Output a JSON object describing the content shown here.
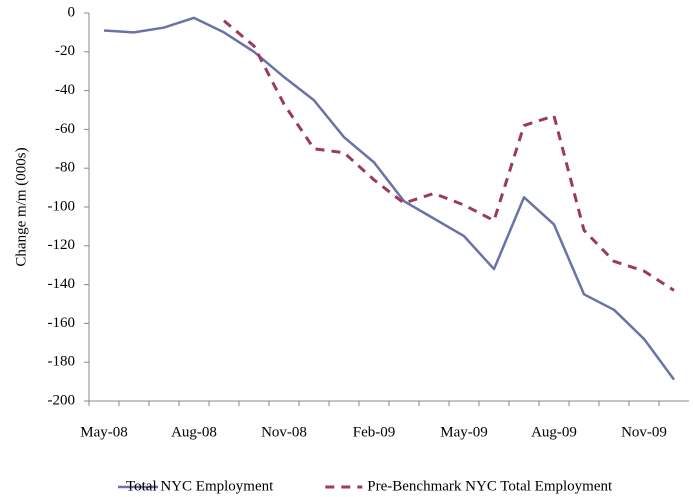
{
  "chart_data": {
    "type": "line",
    "y_label": "Change m/m (000s)",
    "categories": [
      "May-08",
      null,
      null,
      "Aug-08",
      null,
      null,
      "Nov-08",
      null,
      null,
      "Feb-09",
      null,
      null,
      "May-09",
      null,
      null,
      "Aug-09",
      null,
      null,
      "Nov-09",
      null
    ],
    "series": [
      {
        "name": "Total NYC Employment",
        "color": "#6a72a8",
        "dash": false,
        "values": [
          -9,
          -10,
          -7.5,
          -2.5,
          -10,
          -20,
          -33,
          -45,
          -64,
          -77,
          -97,
          -106,
          -115,
          -132,
          -95,
          -109,
          -145,
          -153,
          -168,
          -189
        ]
      },
      {
        "name": "Pre-Benchmark NYC Total Employment",
        "color": "#9b3a5e",
        "dash": true,
        "values": [
          null,
          null,
          null,
          null,
          -4,
          -17,
          -47,
          -70,
          -72,
          -86,
          -98,
          -93,
          -99,
          -107,
          -58,
          -53,
          -112,
          -128,
          -133,
          -143
        ]
      }
    ],
    "ylim": [
      -200,
      0
    ],
    "yticks": [
      -200,
      -180,
      -160,
      -140,
      -120,
      -100,
      -80,
      -60,
      -40,
      -20,
      0
    ],
    "legend": "bottom"
  }
}
